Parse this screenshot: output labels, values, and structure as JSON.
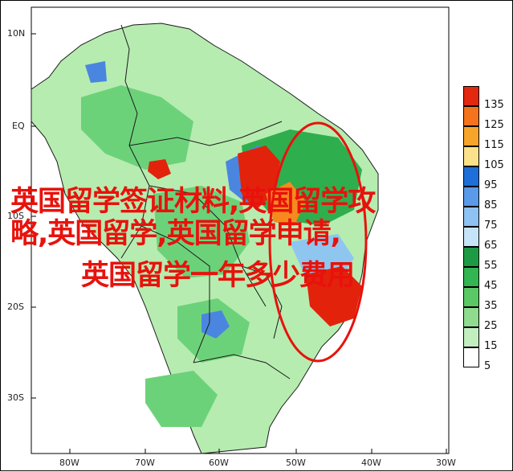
{
  "map": {
    "lat_labels": [
      "10N",
      "EQ",
      "10S",
      "20S",
      "30S"
    ],
    "lon_labels": [
      "80W",
      "70W",
      "60W",
      "50W",
      "40W",
      "30W"
    ],
    "colors": {
      "land": "#ffffff",
      "coast": "#1a1a1a",
      "light_green": "#b6ecb0",
      "green": "#6cd27a",
      "dark_green": "#2fae4e",
      "blue": "#4a86e0",
      "light_blue": "#8fc6f0",
      "red": "#e3220b",
      "orange": "#f58a1e",
      "circle": "#e8120c"
    }
  },
  "legend": {
    "values": [
      "135",
      "125",
      "115",
      "105",
      "95",
      "85",
      "75",
      "65",
      "55",
      "45",
      "35",
      "25",
      "15",
      "5"
    ],
    "colors": [
      "#e2280e",
      "#f5731a",
      "#f7a52a",
      "#fbe28a",
      "#1f6fd8",
      "#5a9ae8",
      "#8ec2f2",
      "#c6e4f7",
      "#1e9a45",
      "#33b552",
      "#5bc866",
      "#8fdc8e",
      "#c2efbf",
      "#ffffff"
    ]
  },
  "overlay": {
    "line1": "英国留学签证材料,英国留学攻",
    "line2": "略,英国留学,英国留学申请,",
    "line3": "英国留学一年多少费用"
  }
}
